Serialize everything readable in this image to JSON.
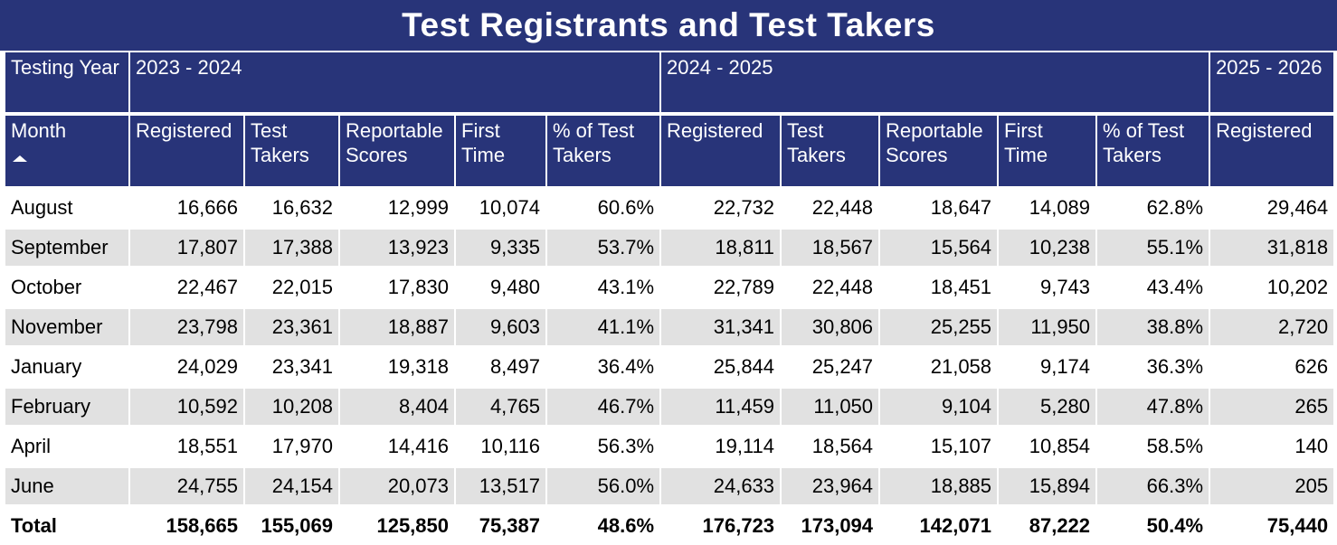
{
  "title": "Test Registrants and Test Takers",
  "header": {
    "year_label": "Testing Year",
    "years": [
      "2023 - 2024",
      "2024 - 2025",
      "2025 - 2026"
    ],
    "month_label": "Month",
    "columns": [
      "Registered",
      "Test Takers",
      "Reportable Scores",
      "First Time",
      "% of Test Takers",
      "Registered",
      "Test Takers",
      "Reportable Scores",
      "First Time",
      "% of Test Takers",
      "Registered"
    ]
  },
  "rows": [
    {
      "month": "August",
      "cells": [
        "16,666",
        "16,632",
        "12,999",
        "10,074",
        "60.6%",
        "22,732",
        "22,448",
        "18,647",
        "14,089",
        "62.8%",
        "29,464"
      ]
    },
    {
      "month": "September",
      "cells": [
        "17,807",
        "17,388",
        "13,923",
        "9,335",
        "53.7%",
        "18,811",
        "18,567",
        "15,564",
        "10,238",
        "55.1%",
        "31,818"
      ]
    },
    {
      "month": "October",
      "cells": [
        "22,467",
        "22,015",
        "17,830",
        "9,480",
        "43.1%",
        "22,789",
        "22,448",
        "18,451",
        "9,743",
        "43.4%",
        "10,202"
      ]
    },
    {
      "month": "November",
      "cells": [
        "23,798",
        "23,361",
        "18,887",
        "9,603",
        "41.1%",
        "31,341",
        "30,806",
        "25,255",
        "11,950",
        "38.8%",
        "2,720"
      ]
    },
    {
      "month": "January",
      "cells": [
        "24,029",
        "23,341",
        "19,318",
        "8,497",
        "36.4%",
        "25,844",
        "25,247",
        "21,058",
        "9,174",
        "36.3%",
        "626"
      ]
    },
    {
      "month": "February",
      "cells": [
        "10,592",
        "10,208",
        "8,404",
        "4,765",
        "46.7%",
        "11,459",
        "11,050",
        "9,104",
        "5,280",
        "47.8%",
        "265"
      ]
    },
    {
      "month": "April",
      "cells": [
        "18,551",
        "17,970",
        "14,416",
        "10,116",
        "56.3%",
        "19,114",
        "18,564",
        "15,107",
        "10,854",
        "58.5%",
        "140"
      ]
    },
    {
      "month": "June",
      "cells": [
        "24,755",
        "24,154",
        "20,073",
        "13,517",
        "56.0%",
        "24,633",
        "23,964",
        "18,885",
        "15,894",
        "66.3%",
        "205"
      ]
    }
  ],
  "total": {
    "label": "Total",
    "cells": [
      "158,665",
      "155,069",
      "125,850",
      "75,387",
      "48.6%",
      "176,723",
      "173,094",
      "142,071",
      "87,222",
      "50.4%",
      "75,440"
    ]
  },
  "colors": {
    "header_bg": "#283479",
    "stripe_bg": "#e1e1e1"
  },
  "sort": {
    "column": "Month",
    "direction": "ascending",
    "icon": "sort-ascending-icon"
  }
}
